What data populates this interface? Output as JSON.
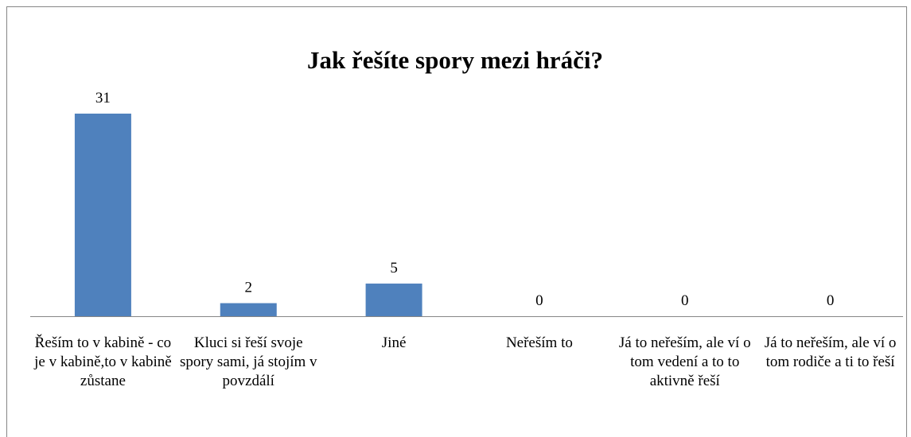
{
  "chart_data": {
    "type": "bar",
    "title": "Jak řešíte spory mezi hráči?",
    "categories": [
      "Řeším to v kabině - co je v kabině,to v kabině zůstane",
      "Kluci si řeší svoje spory sami, já stojím v povzdálí",
      "Jiné",
      "Neřeším to",
      "Já to neřeším, ale ví o tom vedení a to to aktivně řeší",
      "Já to neřeším, ale ví o tom rodiče a ti to řeší"
    ],
    "values": [
      31,
      2,
      5,
      0,
      0,
      0
    ],
    "color": "#4f81bd"
  }
}
